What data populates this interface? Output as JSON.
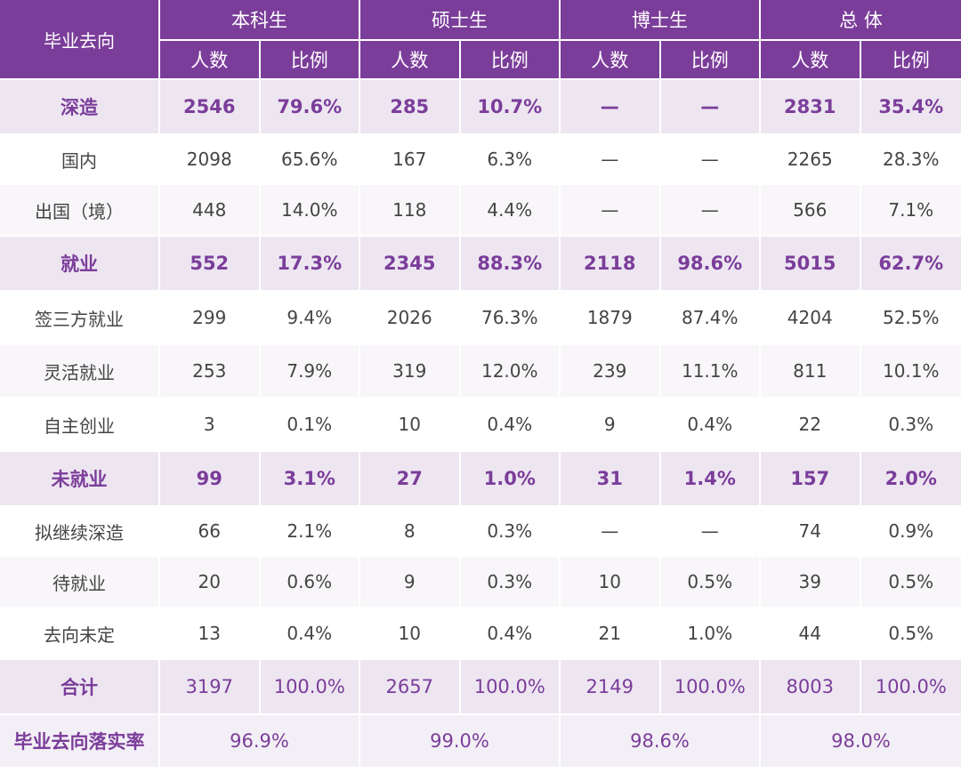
{
  "header": {
    "row_label": "毕业去向",
    "groups": [
      "本科生",
      "硕士生",
      "博士生",
      "总 体"
    ],
    "sub_labels": [
      "人数",
      "比例",
      "人数",
      "比例",
      "人数",
      "比例",
      "人数",
      "比例"
    ]
  },
  "rows": [
    {
      "label": "深造",
      "kind": "cat",
      "cells": [
        "2546",
        "79.6%",
        "285",
        "10.7%",
        "—",
        "—",
        "2831",
        "35.4%"
      ]
    },
    {
      "label": "国内",
      "kind": "sub",
      "cells": [
        "2098",
        "65.6%",
        "167",
        "6.3%",
        "—",
        "—",
        "2265",
        "28.3%"
      ]
    },
    {
      "label": "出国（境）",
      "kind": "sub alt",
      "cells": [
        "448",
        "14.0%",
        "118",
        "4.4%",
        "—",
        "—",
        "566",
        "7.1%"
      ]
    },
    {
      "label": "就业",
      "kind": "cat",
      "cells": [
        "552",
        "17.3%",
        "2345",
        "88.3%",
        "2118",
        "98.6%",
        "5015",
        "62.7%"
      ]
    },
    {
      "label": "签三方就业",
      "kind": "sub",
      "cells": [
        "299",
        "9.4%",
        "2026",
        "76.3%",
        "1879",
        "87.4%",
        "4204",
        "52.5%"
      ]
    },
    {
      "label": "灵活就业",
      "kind": "sub alt",
      "cells": [
        "253",
        "7.9%",
        "319",
        "12.0%",
        "239",
        "11.1%",
        "811",
        "10.1%"
      ]
    },
    {
      "label": "自主创业",
      "kind": "sub",
      "cells": [
        "3",
        "0.1%",
        "10",
        "0.4%",
        "9",
        "0.4%",
        "22",
        "0.3%"
      ]
    },
    {
      "label": "未就业",
      "kind": "cat",
      "cells": [
        "99",
        "3.1%",
        "27",
        "1.0%",
        "31",
        "1.4%",
        "157",
        "2.0%"
      ]
    },
    {
      "label": "拟继续深造",
      "kind": "sub",
      "cells": [
        "66",
        "2.1%",
        "8",
        "0.3%",
        "—",
        "—",
        "74",
        "0.9%"
      ]
    },
    {
      "label": "待就业",
      "kind": "sub alt",
      "cells": [
        "20",
        "0.6%",
        "9",
        "0.3%",
        "10",
        "0.5%",
        "39",
        "0.5%"
      ]
    },
    {
      "label": "去向未定",
      "kind": "sub",
      "cells": [
        "13",
        "0.4%",
        "10",
        "0.4%",
        "21",
        "1.0%",
        "44",
        "0.5%"
      ]
    },
    {
      "label": "合计",
      "kind": "total",
      "cells": [
        "3197",
        "100.0%",
        "2657",
        "100.0%",
        "2149",
        "100.0%",
        "8003",
        "100.0%"
      ]
    }
  ],
  "rate_row": {
    "label": "毕业去向落实率",
    "values": [
      "96.9%",
      "99.0%",
      "98.6%",
      "98.0%"
    ]
  }
}
